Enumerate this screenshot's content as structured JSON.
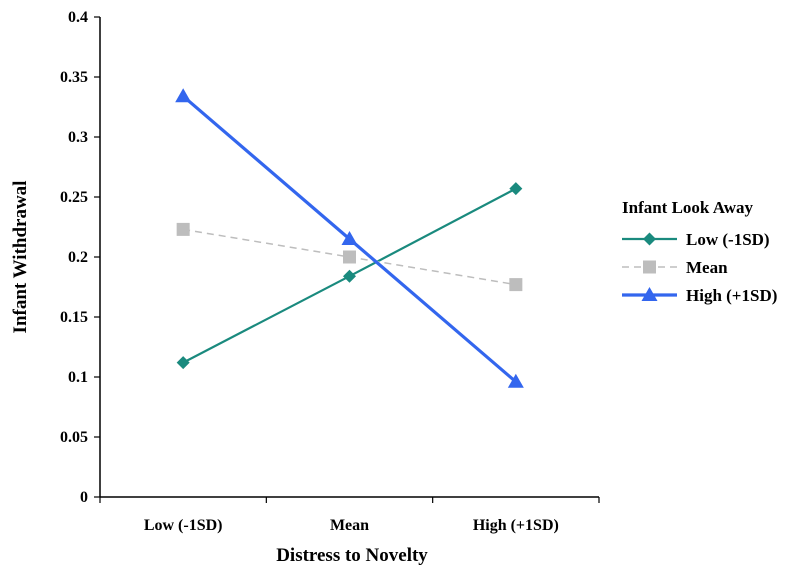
{
  "chart_data": {
    "type": "line",
    "title": "",
    "xlabel": "Distress to Novelty",
    "ylabel": "Infant Withdrawal",
    "categories": [
      "Low (-1SD)",
      "Mean",
      "High (+1SD)"
    ],
    "ylim": [
      0,
      0.4
    ],
    "yticks": [
      0,
      0.05,
      0.1,
      0.15,
      0.2,
      0.25,
      0.3,
      0.35,
      0.4
    ],
    "ytick_labels": [
      "0",
      "0.05",
      "0.1",
      "0.15",
      "0.2",
      "0.25",
      "0.3",
      "0.35",
      "0.4"
    ],
    "grid": false,
    "legend": {
      "title": "Infant Look Away",
      "placement": "right"
    },
    "series": [
      {
        "name": "Low (-1SD)",
        "values": [
          0.112,
          0.184,
          0.257
        ],
        "color": "#1a8a7e",
        "marker": "diamond",
        "dash": "solid"
      },
      {
        "name": "Mean",
        "values": [
          0.223,
          0.2,
          0.177
        ],
        "color": "#bdbdbd",
        "marker": "square",
        "dash": "dashed"
      },
      {
        "name": "High (+1SD)",
        "values": [
          0.334,
          0.215,
          0.096
        ],
        "color": "#3366ee",
        "marker": "triangle",
        "dash": "solid"
      }
    ]
  }
}
